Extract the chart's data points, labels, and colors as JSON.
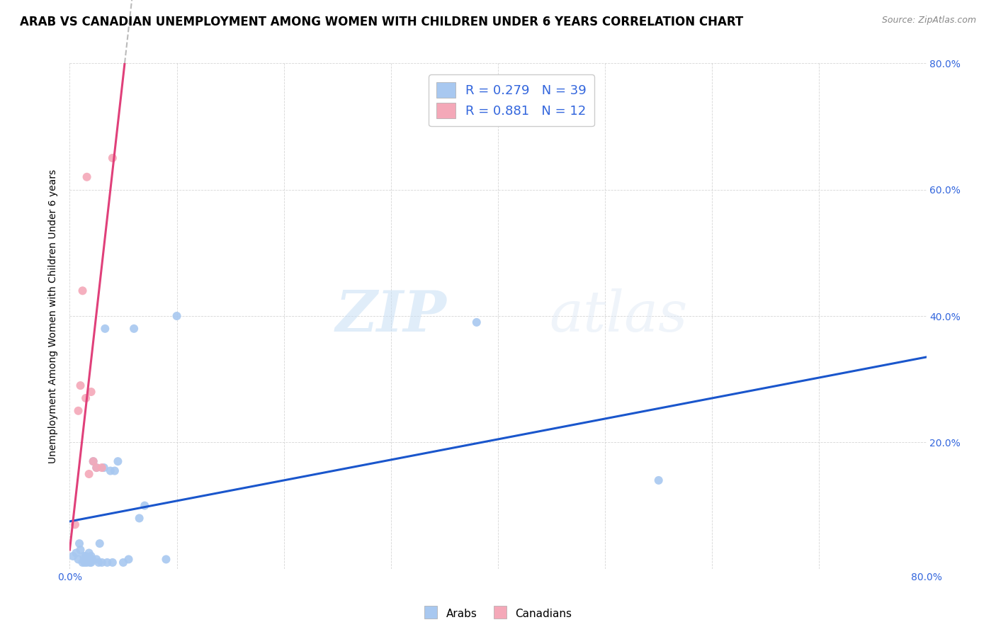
{
  "title": "ARAB VS CANADIAN UNEMPLOYMENT AMONG WOMEN WITH CHILDREN UNDER 6 YEARS CORRELATION CHART",
  "source": "Source: ZipAtlas.com",
  "ylabel": "Unemployment Among Women with Children Under 6 years",
  "xlim": [
    0,
    0.8
  ],
  "ylim": [
    0,
    0.8
  ],
  "arab_color": "#a8c8f0",
  "canadian_color": "#f4a8b8",
  "trend_arab_color": "#1a56cc",
  "trend_canadian_color": "#e0407a",
  "trend_dashed_color": "#bbbbbb",
  "legend_r_arab": "R = 0.279",
  "legend_n_arab": "N = 39",
  "legend_r_canadian": "R = 0.881",
  "legend_n_canadian": "N = 12",
  "watermark_zip": "ZIP",
  "watermark_atlas": "atlas",
  "arab_points_x": [
    0.003,
    0.006,
    0.008,
    0.009,
    0.01,
    0.012,
    0.013,
    0.014,
    0.015,
    0.015,
    0.016,
    0.017,
    0.018,
    0.019,
    0.02,
    0.02,
    0.021,
    0.022,
    0.025,
    0.025,
    0.027,
    0.028,
    0.03,
    0.032,
    0.033,
    0.035,
    0.038,
    0.04,
    0.042,
    0.045,
    0.05,
    0.055,
    0.06,
    0.065,
    0.07,
    0.09,
    0.1,
    0.38,
    0.55
  ],
  "arab_points_y": [
    0.02,
    0.025,
    0.015,
    0.04,
    0.03,
    0.01,
    0.02,
    0.01,
    0.015,
    0.02,
    0.01,
    0.015,
    0.025,
    0.01,
    0.01,
    0.02,
    0.015,
    0.17,
    0.015,
    0.16,
    0.01,
    0.04,
    0.01,
    0.16,
    0.38,
    0.01,
    0.155,
    0.01,
    0.155,
    0.17,
    0.01,
    0.015,
    0.38,
    0.08,
    0.1,
    0.015,
    0.4,
    0.39,
    0.14
  ],
  "canadian_points_x": [
    0.005,
    0.008,
    0.01,
    0.012,
    0.015,
    0.016,
    0.018,
    0.02,
    0.022,
    0.025,
    0.03,
    0.04
  ],
  "canadian_points_y": [
    0.07,
    0.25,
    0.29,
    0.44,
    0.27,
    0.62,
    0.15,
    0.28,
    0.17,
    0.16,
    0.16,
    0.65
  ],
  "arab_trend_x": [
    0.0,
    0.8
  ],
  "arab_trend_y": [
    0.075,
    0.335
  ],
  "canadian_intercept": 0.03,
  "canadian_slope": 15.0,
  "title_fontsize": 12,
  "source_fontsize": 9,
  "axis_label_fontsize": 10,
  "tick_fontsize": 10,
  "legend_fontsize": 13,
  "point_size": 75,
  "background_color": "#ffffff",
  "grid_color": "#cccccc",
  "tick_label_color": "#3366dd",
  "legend_text_color": "#3366dd"
}
